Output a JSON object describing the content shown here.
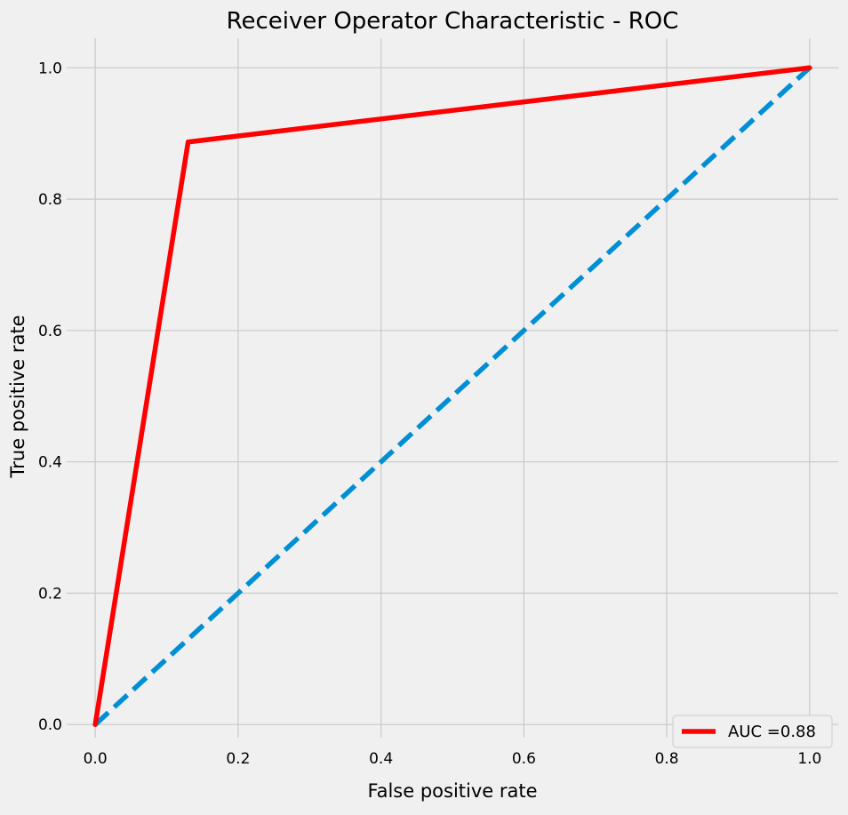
{
  "chart_data": {
    "type": "line",
    "title": "Receiver Operator Characteristic - ROC",
    "xlabel": "False positive rate",
    "ylabel": "True positive rate",
    "xlim": [
      -0.04,
      1.04
    ],
    "ylim": [
      -0.02,
      1.045
    ],
    "xticks": [
      0.0,
      0.2,
      0.4,
      0.6,
      0.8,
      1.0
    ],
    "yticks": [
      0.0,
      0.2,
      0.4,
      0.6,
      0.8,
      1.0
    ],
    "xtick_labels": [
      "0.0",
      "0.2",
      "0.4",
      "0.6",
      "0.8",
      "1.0"
    ],
    "ytick_labels": [
      "0.0",
      "0.2",
      "0.4",
      "0.6",
      "0.8",
      "1.0"
    ],
    "grid": true,
    "legend_position": "lower-right",
    "series": [
      {
        "name": "AUC =0.88",
        "color": "#ff0000",
        "style": "solid",
        "x": [
          0.0,
          0.13,
          1.0
        ],
        "y": [
          0.0,
          0.887,
          1.0
        ]
      },
      {
        "color": "#008fd5",
        "style": "dashed",
        "x": [
          0.0,
          1.0
        ],
        "y": [
          0.0,
          1.0
        ]
      }
    ]
  }
}
